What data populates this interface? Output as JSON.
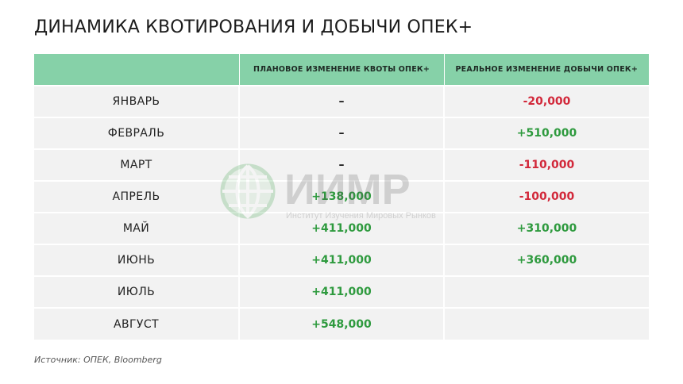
{
  "title": "ДИНАМИКА КВОТИРОВАНИЯ И ДОБЫЧИ ОПЕК+",
  "watermark": {
    "logo_text": "ИИМР",
    "subtitle": "Институт Изучения Мировых Рынков"
  },
  "source": "Источник: ОПЕК, Bloomberg",
  "colors": {
    "header": "#86d1a8",
    "positive": "#2e9a3e",
    "negative": "#d2283a",
    "row": "#f2f2f2"
  },
  "chart_data": {
    "type": "table",
    "columns": [
      "",
      "ПЛАНОВОЕ ИЗМЕНЕНИЕ КВОТЫ ОПЕК+",
      "РЕАЛЬНОЕ  ИЗМЕНЕНИЕ ДОБЫЧИ ОПЕК+"
    ],
    "rows": [
      {
        "month": "ЯНВАРЬ",
        "quota": "–",
        "quota_sign": "dash",
        "actual": "-20,000",
        "actual_sign": "neg"
      },
      {
        "month": "ФЕВРАЛЬ",
        "quota": "–",
        "quota_sign": "dash",
        "actual": "+510,000",
        "actual_sign": "pos"
      },
      {
        "month": "МАРТ",
        "quota": "–",
        "quota_sign": "dash",
        "actual": "-110,000",
        "actual_sign": "neg"
      },
      {
        "month": "АПРЕЛЬ",
        "quota": "+138,000",
        "quota_sign": "pos",
        "actual": "-100,000",
        "actual_sign": "neg"
      },
      {
        "month": "МАЙ",
        "quota": "+411,000",
        "quota_sign": "pos",
        "actual": "+310,000",
        "actual_sign": "pos"
      },
      {
        "month": "ИЮНЬ",
        "quota": "+411,000",
        "quota_sign": "pos",
        "actual": "+360,000",
        "actual_sign": "pos"
      },
      {
        "month": "ИЮЛЬ",
        "quota": "+411,000",
        "quota_sign": "pos",
        "actual": "",
        "actual_sign": ""
      },
      {
        "month": "АВГУСТ",
        "quota": "+548,000",
        "quota_sign": "pos",
        "actual": "",
        "actual_sign": ""
      }
    ]
  }
}
